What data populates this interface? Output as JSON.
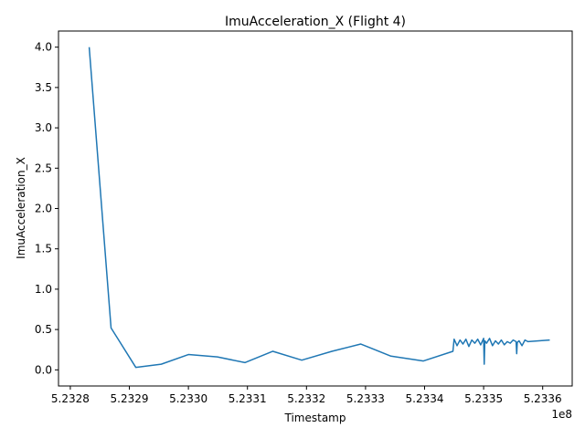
{
  "chart_data": {
    "type": "line",
    "title": "ImuAcceleration_X (Flight 4)",
    "xlabel": "Timestamp",
    "ylabel": "ImuAcceleration_X",
    "x_offset_label": "1e8",
    "x_scale": 100000000,
    "xlim": [
      5.23278,
      5.23365
    ],
    "ylim": [
      -0.2,
      4.2
    ],
    "x_ticks": [
      5.2328,
      5.2329,
      5.233,
      5.2331,
      5.2332,
      5.2333,
      5.2334,
      5.2335,
      5.2336
    ],
    "x_tick_labels": [
      "5.2328",
      "5.2329",
      "5.2330",
      "5.2331",
      "5.2332",
      "5.2333",
      "5.2334",
      "5.2335",
      "5.2336"
    ],
    "y_ticks": [
      0.0,
      0.5,
      1.0,
      1.5,
      2.0,
      2.5,
      3.0,
      3.5,
      4.0
    ],
    "y_tick_labels": [
      "0.0",
      "0.5",
      "1.0",
      "1.5",
      "2.0",
      "2.5",
      "3.0",
      "3.5",
      "4.0"
    ],
    "grid": false,
    "line_color": "#1f77b4",
    "series": [
      {
        "x": [
          5.232832,
          5.232869,
          5.232911,
          5.232954,
          5.233,
          5.233049,
          5.233096,
          5.233143,
          5.233192,
          5.233243,
          5.233292,
          5.233343,
          5.233398,
          5.233448,
          5.23345,
          5.233455,
          5.23346,
          5.233465,
          5.23347,
          5.233475,
          5.23348,
          5.233485,
          5.23349,
          5.233495,
          5.2335,
          5.233501,
          5.233502,
          5.233505,
          5.23351,
          5.233515,
          5.23352,
          5.233525,
          5.23353,
          5.233535,
          5.23354,
          5.233545,
          5.23355,
          5.233555,
          5.233556,
          5.233557,
          5.23356,
          5.233565,
          5.23357,
          5.233575,
          5.233612
        ],
        "y": [
          4.0,
          0.52,
          0.03,
          0.07,
          0.19,
          0.16,
          0.09,
          0.23,
          0.12,
          0.23,
          0.32,
          0.17,
          0.11,
          0.23,
          0.38,
          0.3,
          0.37,
          0.32,
          0.38,
          0.29,
          0.37,
          0.33,
          0.38,
          0.31,
          0.39,
          0.07,
          0.36,
          0.33,
          0.39,
          0.3,
          0.36,
          0.32,
          0.37,
          0.31,
          0.35,
          0.33,
          0.37,
          0.35,
          0.2,
          0.34,
          0.36,
          0.3,
          0.37,
          0.35,
          0.37
        ]
      }
    ]
  }
}
